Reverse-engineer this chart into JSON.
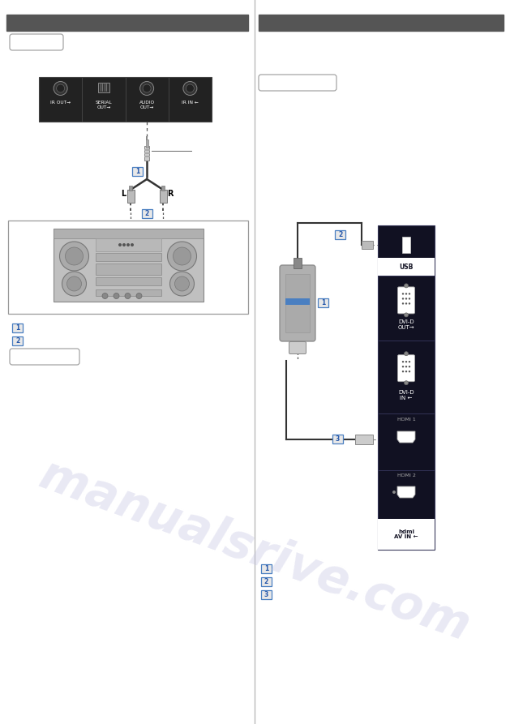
{
  "bg_color": "#ffffff",
  "divider_color": "#bbbbbb",
  "header_color": "#555555",
  "watermark_color": "#c0c0e0",
  "watermark_text": "manualsrive.com",
  "watermark_alpha": 0.35,
  "connector_panel_bg": "#111122",
  "connector_panel_white_row_bg": "#222244",
  "left_panel_bg": "#222222",
  "left_panel_edge": "#444444",
  "numbered_box_border": "#4a7fc1",
  "numbered_box_bg": "#e8e8e8",
  "numbered_box_text": "#2255aa",
  "left_panel_labels": [
    "IR OUT→",
    "SERIAL\nOUT→",
    "AUDIO\nOUT→",
    "IR IN ←"
  ],
  "connector_sections": [
    {
      "label": "USB",
      "icon": "usb",
      "label_bg": "#ffffff",
      "label_text": "#111122"
    },
    {
      "label": "DVI-D\nOUT→",
      "icon": "dvi",
      "label_bg": null,
      "label_text": "#ffffff"
    },
    {
      "label": "DVI-D\nIN ←",
      "icon": "dvi",
      "label_bg": null,
      "label_text": "#ffffff"
    },
    {
      "label": "HDMI 1",
      "icon": "hdmi",
      "label_bg": null,
      "label_text": "#ffffff"
    },
    {
      "label": "HDMI 2",
      "icon": "hdmi2",
      "label_bg": null,
      "label_text": "#ffffff"
    },
    {
      "label": "hdmi\nAV IN ←",
      "icon": "hdmi_av",
      "label_bg": "#ffffff",
      "label_text": "#111122"
    }
  ]
}
